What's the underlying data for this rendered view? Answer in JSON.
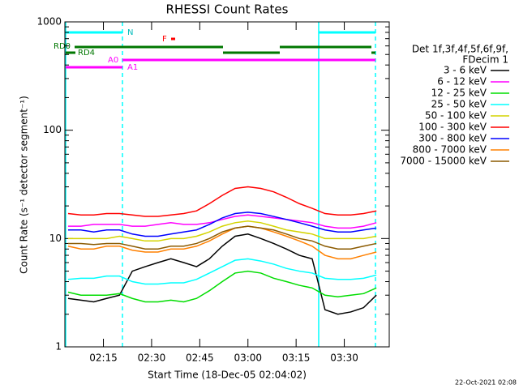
{
  "chart_data": {
    "type": "line",
    "title": "RHESSI Count Rates",
    "xlabel": "Start Time (18-Dec-05 02:04:02)",
    "ylabel": "Count Rate (s⁻¹ detector segment⁻¹)",
    "legend_title": [
      "Det 1f,3f,4f,5f,6f,9f,",
      "FDecim 1"
    ],
    "footer": "22-Oct-2021 02:08",
    "flags": [
      "N",
      "F",
      "RD0",
      "RD4",
      "A0",
      "A1"
    ],
    "log_y": true,
    "xlim": [
      3,
      104
    ],
    "ylim": [
      1,
      1000
    ],
    "yticks": [
      1,
      10,
      100,
      1000
    ],
    "xticks": [
      {
        "value": 15,
        "label": "02:15"
      },
      {
        "value": 30,
        "label": "02:30"
      },
      {
        "value": 45,
        "label": "02:45"
      },
      {
        "value": 60,
        "label": "03:00"
      },
      {
        "value": 75,
        "label": "03:15"
      },
      {
        "value": 90,
        "label": "03:30"
      }
    ],
    "x": [
      4,
      8,
      12,
      16,
      20,
      24,
      28,
      32,
      36,
      40,
      44,
      48,
      52,
      56,
      60,
      64,
      68,
      72,
      76,
      80,
      84,
      88,
      92,
      96,
      100
    ],
    "series": [
      {
        "name": "3 - 6 keV",
        "color": "#000000",
        "values": [
          2.8,
          2.7,
          2.6,
          2.8,
          3.0,
          5.0,
          5.5,
          6.0,
          6.5,
          6.0,
          5.5,
          6.5,
          8.5,
          10.5,
          11,
          10,
          9,
          8,
          7,
          6.5,
          2.2,
          2.0,
          2.1,
          2.3,
          3.0
        ]
      },
      {
        "name": "6 - 12 keV",
        "color": "#ff00ff",
        "values": [
          13,
          13,
          13.5,
          13.5,
          13.5,
          13,
          13,
          13.5,
          14,
          13.5,
          13.5,
          14,
          15,
          16,
          16.5,
          16,
          15.5,
          15,
          14.5,
          14,
          13,
          12.5,
          12.5,
          13,
          14
        ]
      },
      {
        "name": "12 - 25 keV",
        "color": "#00dd00",
        "values": [
          3.2,
          3.0,
          3.0,
          3.0,
          3.1,
          2.8,
          2.6,
          2.6,
          2.7,
          2.6,
          2.8,
          3.3,
          4.0,
          4.8,
          5.0,
          4.8,
          4.3,
          4.0,
          3.7,
          3.5,
          3.0,
          2.9,
          3.0,
          3.1,
          3.5
        ]
      },
      {
        "name": "25 - 50 keV",
        "color": "#00ffff",
        "values": [
          4.2,
          4.3,
          4.3,
          4.5,
          4.5,
          4.0,
          3.8,
          3.8,
          3.9,
          3.9,
          4.2,
          4.8,
          5.5,
          6.3,
          6.5,
          6.2,
          5.8,
          5.3,
          5.0,
          4.8,
          4.3,
          4.2,
          4.2,
          4.3,
          4.6
        ]
      },
      {
        "name": "50 - 100 keV",
        "color": "#d4d400",
        "values": [
          10,
          10,
          10,
          10,
          10.5,
          10,
          9.5,
          9.5,
          10,
          10,
          10.5,
          11.5,
          13,
          14,
          14.5,
          14,
          13,
          12,
          11.5,
          11,
          10,
          10,
          10,
          10,
          10.5
        ]
      },
      {
        "name": "100 - 300 keV",
        "color": "#ff0000",
        "values": [
          17,
          16.5,
          16.5,
          17,
          17,
          16.5,
          16,
          16,
          16.5,
          17,
          18,
          21,
          25,
          29,
          30,
          29,
          27,
          24,
          21,
          19,
          17,
          16.5,
          16.5,
          17,
          18
        ]
      },
      {
        "name": "300 - 800 keV",
        "color": "#0000ff",
        "values": [
          12,
          12,
          11.5,
          12,
          12,
          11,
          10.5,
          10.5,
          11,
          11.5,
          12,
          13.5,
          15.5,
          17,
          17.5,
          17,
          16,
          15,
          14,
          13,
          12,
          11.5,
          11.5,
          12,
          12.5
        ]
      },
      {
        "name": "800 - 7000 keV",
        "color": "#ff8000",
        "values": [
          8.5,
          8,
          8,
          8.5,
          8.5,
          7.8,
          7.5,
          7.5,
          8,
          8,
          8.5,
          9.5,
          11,
          12.5,
          13,
          12.5,
          11.5,
          10.5,
          9.5,
          8.5,
          7,
          6.5,
          6.5,
          7,
          7.5
        ]
      },
      {
        "name": "7000 - 15000 keV",
        "color": "#8b5a00",
        "values": [
          9,
          9,
          8.8,
          9,
          9,
          8.5,
          8,
          8,
          8.5,
          8.5,
          9,
          10,
          11.5,
          12.5,
          13,
          12.5,
          12,
          11,
          10,
          9.5,
          8.5,
          8,
          8,
          8.5,
          9
        ]
      }
    ]
  }
}
